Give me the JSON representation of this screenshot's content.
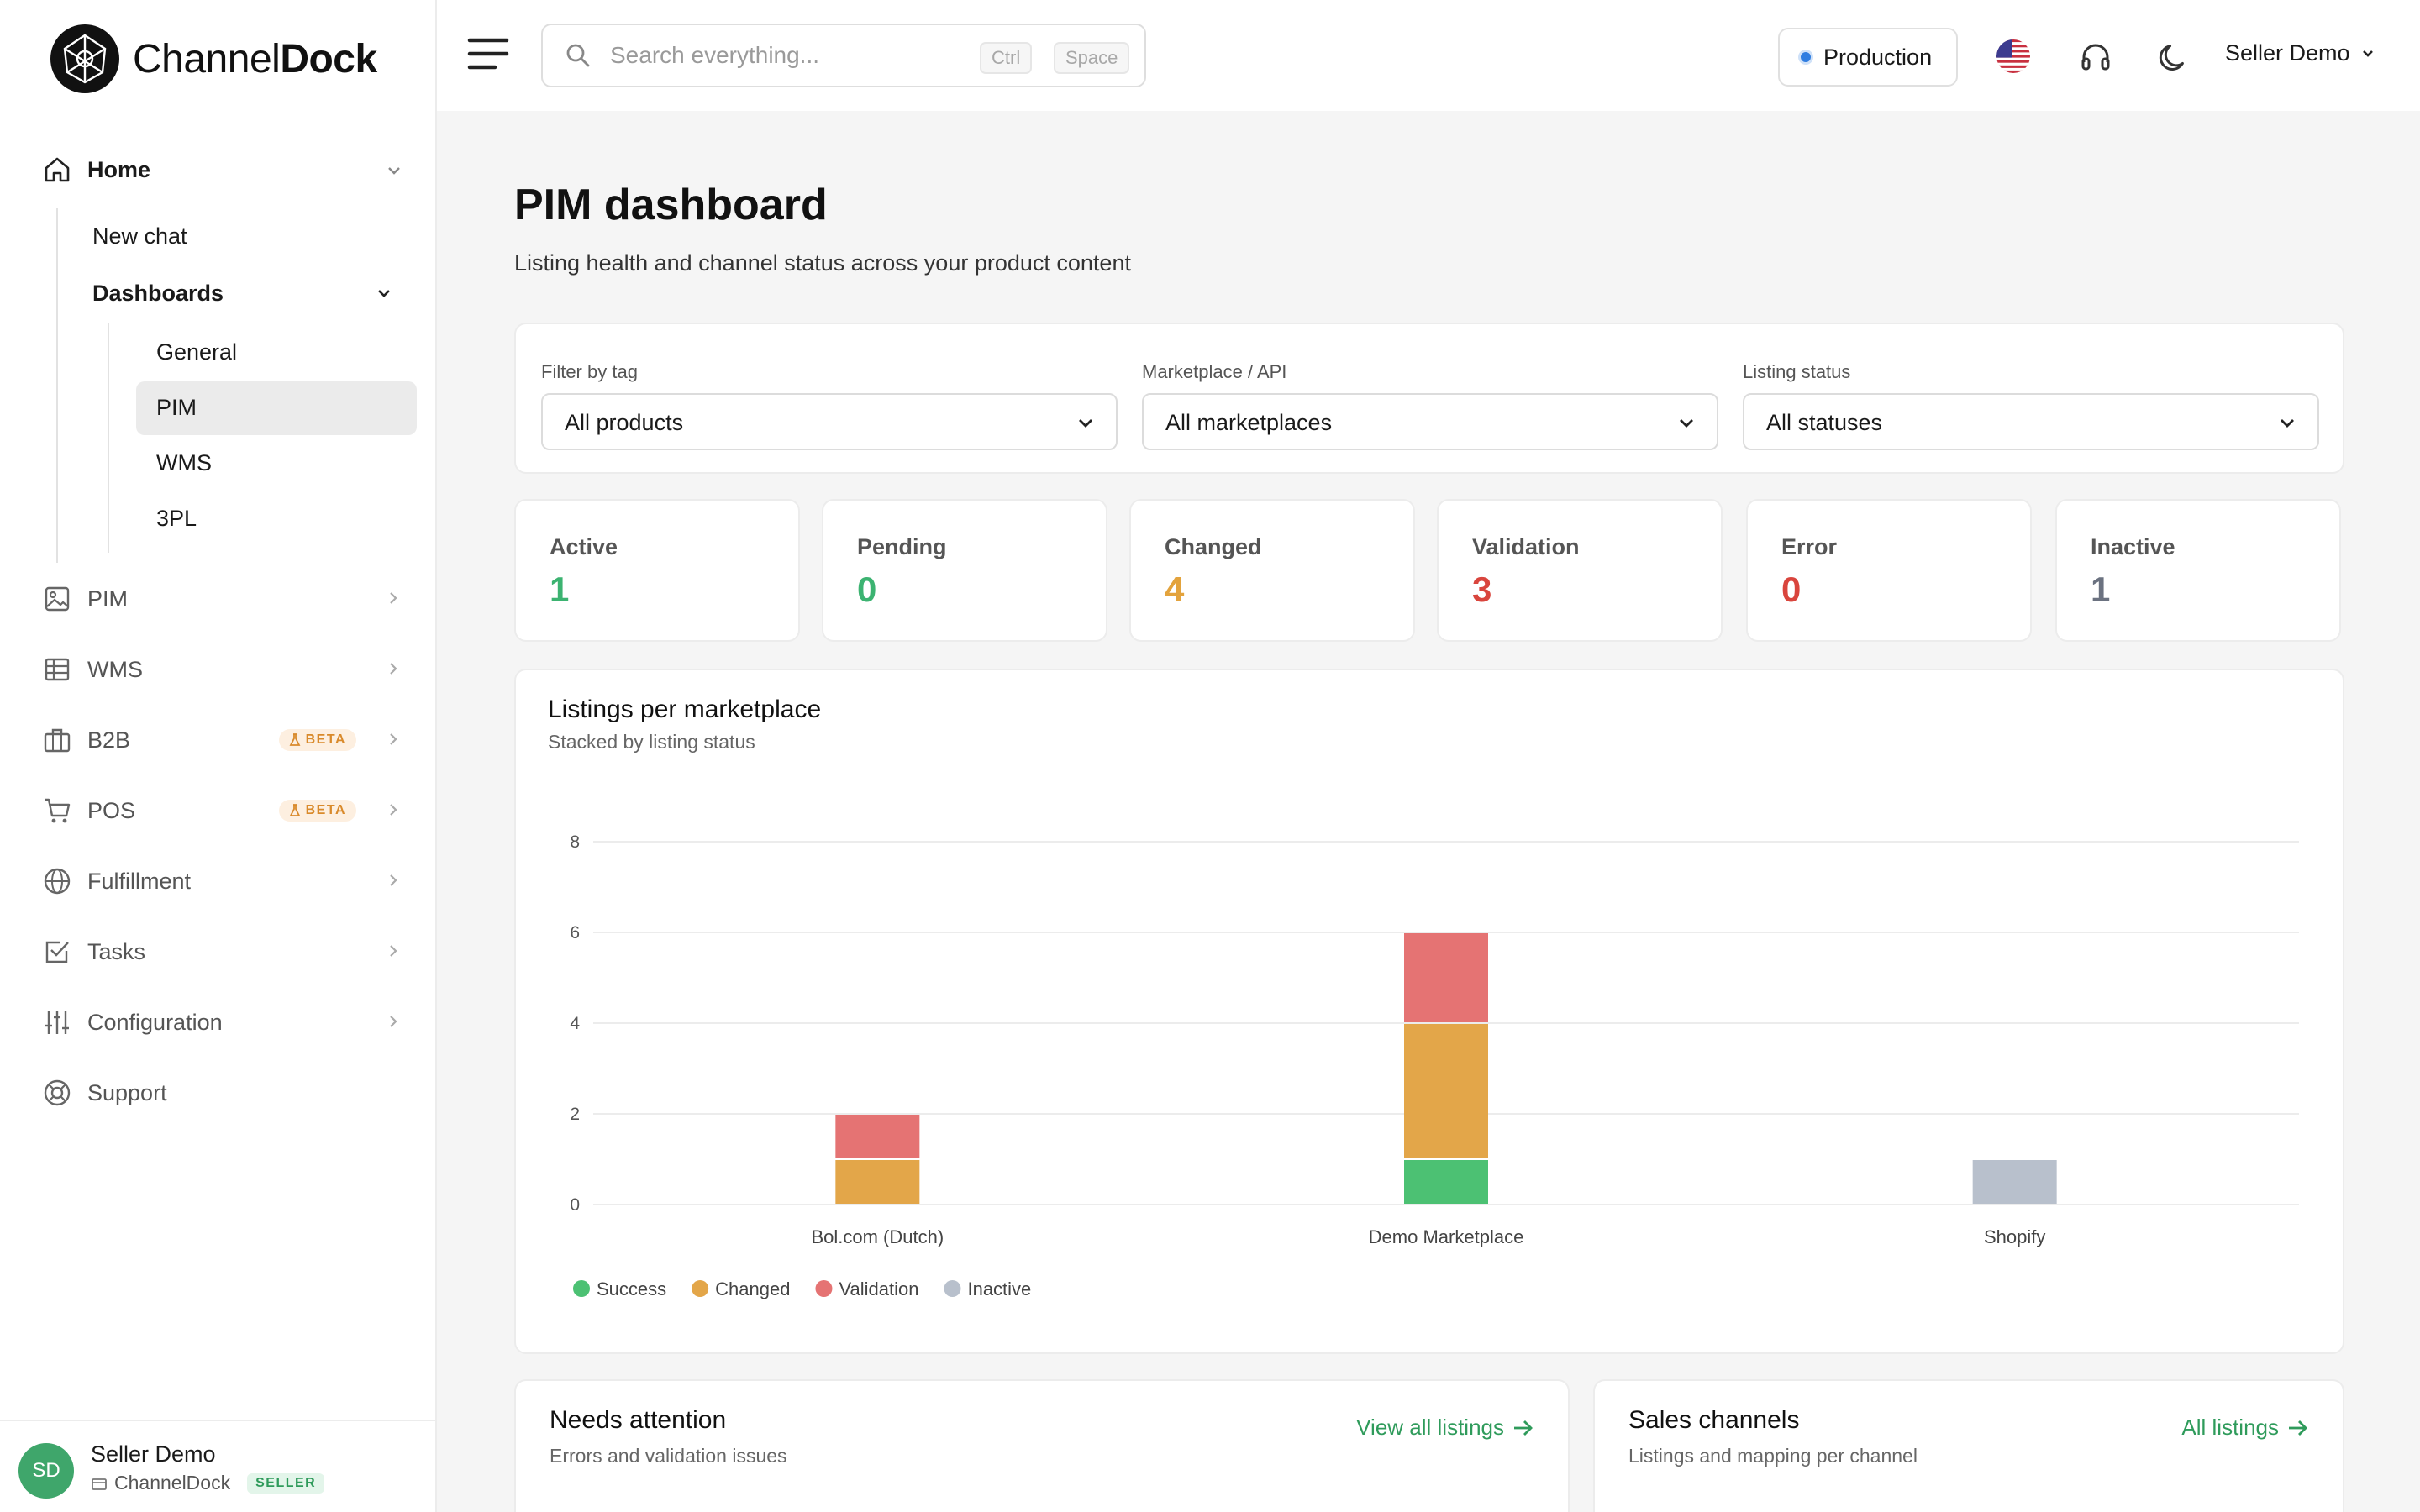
{
  "brand": {
    "name_light": "Channel",
    "name_bold": "Dock"
  },
  "sidebar": {
    "home": "Home",
    "new_chat": "New chat",
    "dashboards": "Dashboards",
    "dash_items": [
      "General",
      "PIM",
      "WMS",
      "3PL"
    ],
    "items": [
      {
        "label": "PIM",
        "icon": "image-icon"
      },
      {
        "label": "WMS",
        "icon": "table-icon"
      },
      {
        "label": "B2B",
        "icon": "briefcase-icon",
        "badge": "BETA"
      },
      {
        "label": "POS",
        "icon": "cart-icon",
        "badge": "BETA"
      },
      {
        "label": "Fulfillment",
        "icon": "globe-icon"
      },
      {
        "label": "Tasks",
        "icon": "checkbox-icon"
      },
      {
        "label": "Configuration",
        "icon": "sliders-icon"
      },
      {
        "label": "Support",
        "icon": "lifebuoy-icon"
      }
    ],
    "user": {
      "initials": "SD",
      "name": "Seller Demo",
      "org": "ChannelDock",
      "role": "SELLER"
    }
  },
  "topbar": {
    "search_placeholder": "Search everything...",
    "kbd1": "Ctrl",
    "kbd2": "Space",
    "environment": "Production",
    "account": "Seller Demo"
  },
  "page": {
    "title": "PIM dashboard",
    "subtitle": "Listing health and channel status across your product content"
  },
  "filters": [
    {
      "label": "Filter by tag",
      "value": "All products"
    },
    {
      "label": "Marketplace / API",
      "value": "All marketplaces"
    },
    {
      "label": "Listing status",
      "value": "All statuses"
    }
  ],
  "kpis": [
    {
      "label": "Active",
      "value": "1",
      "color": "#3cb371"
    },
    {
      "label": "Pending",
      "value": "0",
      "color": "#3cb371"
    },
    {
      "label": "Changed",
      "value": "4",
      "color": "#e3a33d"
    },
    {
      "label": "Validation",
      "value": "3",
      "color": "#d9453d"
    },
    {
      "label": "Error",
      "value": "0",
      "color": "#d9453d"
    },
    {
      "label": "Inactive",
      "value": "1",
      "color": "#6b7280"
    }
  ],
  "chart_card": {
    "title": "Listings per marketplace",
    "subtitle": "Stacked by listing status"
  },
  "chart_data": {
    "type": "bar",
    "stacked": true,
    "categories": [
      "Bol.com (Dutch)",
      "Demo Marketplace",
      "Shopify"
    ],
    "series": [
      {
        "name": "Success",
        "values": [
          0,
          1,
          0
        ],
        "color": "#4cc173"
      },
      {
        "name": "Changed",
        "values": [
          1,
          3,
          0
        ],
        "color": "#e3a649"
      },
      {
        "name": "Validation",
        "values": [
          1,
          2,
          0
        ],
        "color": "#e57373"
      },
      {
        "name": "Inactive",
        "values": [
          0,
          0,
          1
        ],
        "color": "#b8c0cc"
      }
    ],
    "ylim": [
      0,
      8
    ],
    "yticks": [
      0,
      2,
      4,
      6,
      8
    ],
    "grid": true,
    "legend": "bottom-left"
  },
  "attention": {
    "title": "Needs attention",
    "subtitle": "Errors and validation issues",
    "link": "View all listings"
  },
  "channels": {
    "title": "Sales channels",
    "subtitle": "Listings and mapping per channel",
    "link": "All listings"
  }
}
